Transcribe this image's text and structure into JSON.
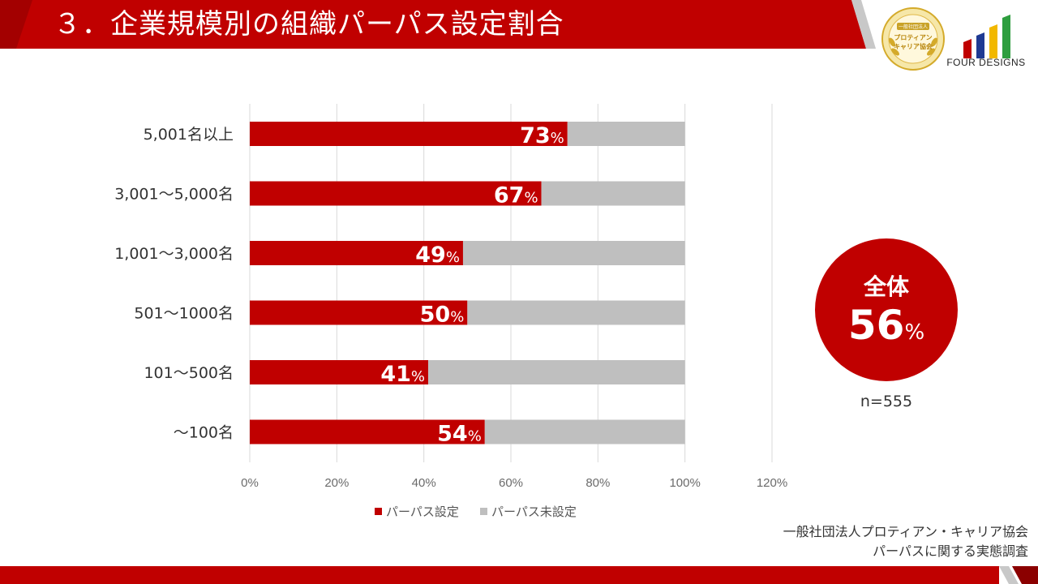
{
  "header": {
    "title": "３．企業規模別の組織パーパス設定割合",
    "colors": {
      "banner": "#c00000",
      "banner_dark": "#8b0000",
      "accent_gray": "#c8c8c8"
    }
  },
  "logos": {
    "seal": {
      "line1": "一般社団法人",
      "line2": "プロティアン",
      "line3": "キャリア協会",
      "icon": "gold-laurel-seal-icon"
    },
    "brand": {
      "name": "FOUR DESIGNS",
      "icon": "four-bars-logo-icon",
      "bar_colors": [
        "#c00000",
        "#1f3a93",
        "#f2b800",
        "#2e9e3f"
      ]
    }
  },
  "chart_data": {
    "type": "bar",
    "orientation": "horizontal",
    "stacked": true,
    "categories": [
      "5,001名以上",
      "3,001～5,000名",
      "1,001～3,000名",
      "501～1000名",
      "101～500名",
      "～100名"
    ],
    "series": [
      {
        "name": "パーパス設定",
        "color": "#c00000",
        "values": [
          73,
          67,
          49,
          50,
          41,
          54
        ]
      },
      {
        "name": "パーパス未設定",
        "color": "#bfbfbf",
        "values": [
          27,
          33,
          51,
          50,
          59,
          46
        ]
      }
    ],
    "data_labels": [
      "73",
      "67",
      "49",
      "50",
      "41",
      "54"
    ],
    "data_label_unit": "%",
    "xlim": [
      0,
      120
    ],
    "xticks": [
      "0%",
      "20%",
      "40%",
      "60%",
      "80%",
      "100%",
      "120%"
    ],
    "grid": true,
    "legend_position": "bottom"
  },
  "overall": {
    "label": "全体",
    "value": "56",
    "unit": "%",
    "sample_size": "n=555",
    "color": "#c00000"
  },
  "source": {
    "line1": "一般社団法人プロティアン・キャリア協会",
    "line2": "パーパスに関する実態調査"
  },
  "footer": {
    "color": "#c00000"
  }
}
